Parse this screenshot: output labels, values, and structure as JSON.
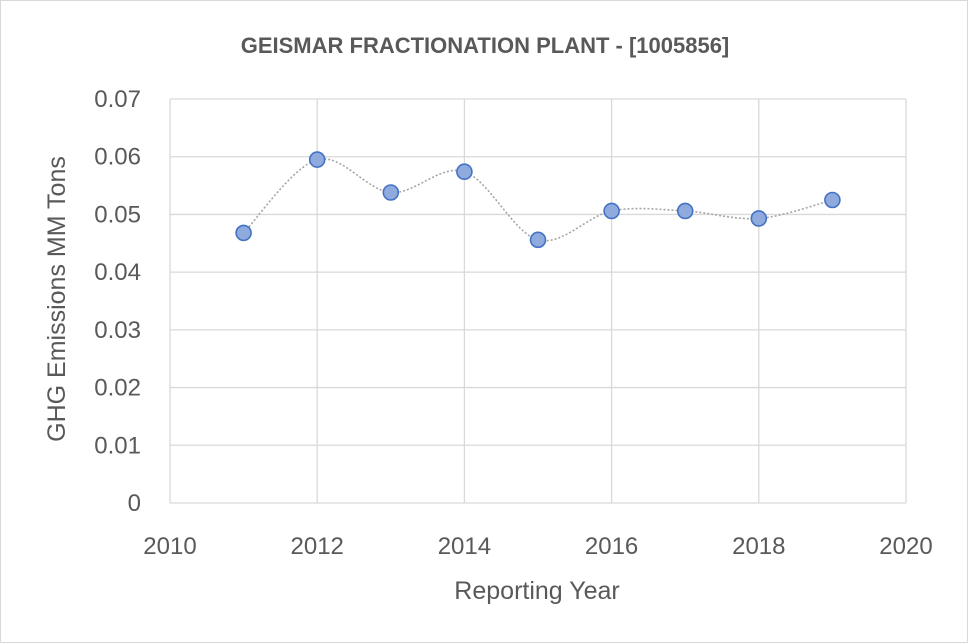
{
  "chart_data": {
    "type": "scatter",
    "title": "GEISMAR FRACTIONATION PLANT - [1005856]",
    "xlabel": "Reporting Year",
    "ylabel": "GHG Emissions MM Tons",
    "xlim": [
      2010,
      2020
    ],
    "ylim": [
      0,
      0.07
    ],
    "x_ticks": [
      "2010",
      "2012",
      "2014",
      "2016",
      "2018",
      "2020"
    ],
    "y_ticks": [
      "0",
      "0.01",
      "0.02",
      "0.03",
      "0.04",
      "0.05",
      "0.06",
      "0.07"
    ],
    "grid": true,
    "smooth_line": true,
    "series": [
      {
        "x": [
          2011,
          2012,
          2013,
          2014,
          2015,
          2016,
          2017,
          2018,
          2019
        ],
        "y": [
          0.0468,
          0.0595,
          0.0538,
          0.0574,
          0.0456,
          0.0506,
          0.0506,
          0.0493,
          0.0525
        ],
        "color": "#8faadc",
        "edge_color": "#4472c4"
      }
    ]
  }
}
